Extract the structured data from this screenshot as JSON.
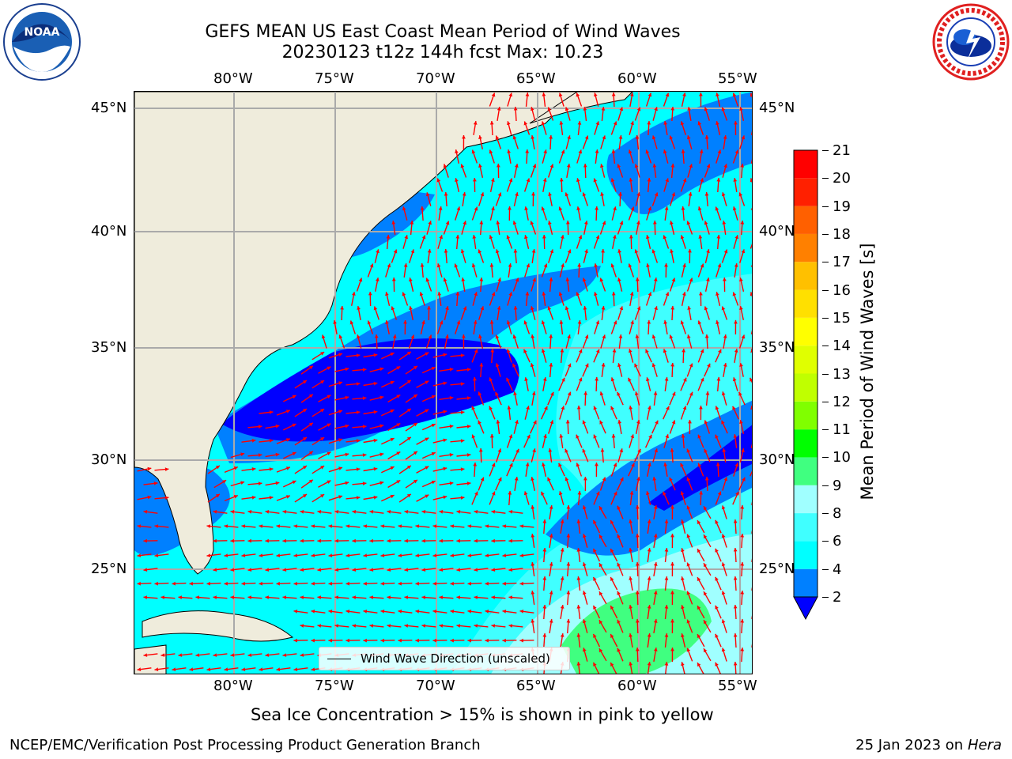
{
  "title_line1": "GEFS MEAN US East Coast Mean Period of Wind Waves",
  "title_line2": "20230123 t12z 144h fcst   Max: 10.23",
  "logos": {
    "left": {
      "name": "noaa-logo",
      "text": "NOAA"
    },
    "right": {
      "name": "nws-logo",
      "text": "NATIONAL WEATHER SERVICE"
    }
  },
  "map": {
    "lon_labels": [
      "80°W",
      "75°W",
      "70°W",
      "65°W",
      "60°W",
      "55°W"
    ],
    "lat_labels_left": [
      "45°N",
      "40°N",
      "35°N",
      "30°N",
      "25°N"
    ],
    "lat_labels_right": [
      "45°N",
      "40°N",
      "35°N",
      "30°N",
      "25°N"
    ],
    "legend_text": "Wind Wave Direction (unscaled)",
    "arrow_color": "#ff0000",
    "land_color": "#efecdc"
  },
  "colorbar": {
    "label": "Mean Period of Wind Waves [s]",
    "ticks": [
      "2",
      "4",
      "6",
      "8",
      "9",
      "10",
      "11",
      "12",
      "13",
      "14",
      "15",
      "16",
      "17",
      "18",
      "19",
      "20",
      "21"
    ],
    "colors": [
      "#0000ff",
      "#0080ff",
      "#00ffff",
      "#40ffff",
      "#a0ffff",
      "#40ff80",
      "#00ff00",
      "#80ff00",
      "#c0ff00",
      "#e0ff00",
      "#ffff00",
      "#ffe000",
      "#ffc000",
      "#ff8000",
      "#ff6000",
      "#ff2000",
      "#ff0000"
    ]
  },
  "footer": {
    "ice_note": "Sea Ice Concentration > 15% is shown in pink to yellow",
    "left": "NCEP/EMC/Verification Post Processing Product Generation Branch",
    "right_date": "25 Jan 2023 on ",
    "right_host": "Hera"
  }
}
